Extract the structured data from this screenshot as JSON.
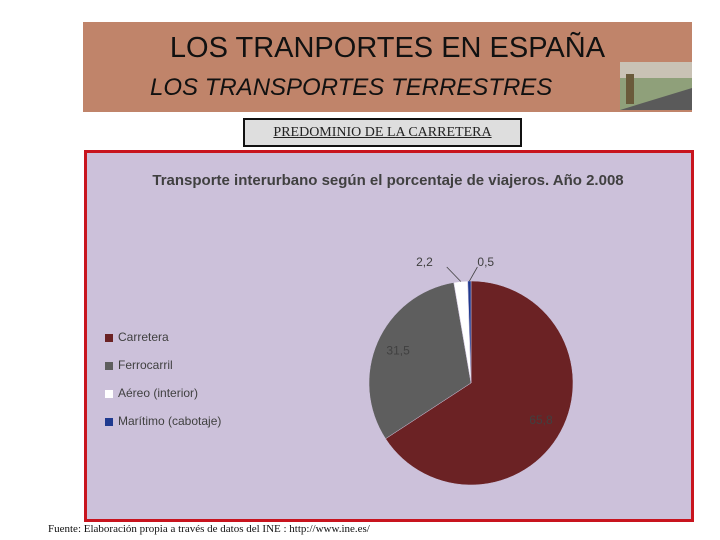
{
  "slide": {
    "title": "LOS TRANPORTES EN ESPAÑA",
    "subtitle": "LOS TRANSPORTES TERRESTRES",
    "banner": "PREDOMINIO DE LA CARRETERA",
    "source": "Fuente: Elaboración propia a través de datos del INE : http://www.ine.es/"
  },
  "chart_data": {
    "type": "pie",
    "title": "Transporte interurbano según el porcentaje de viajeros. Año 2.008",
    "categories": [
      "Carretera",
      "Ferrocarril",
      "Aéreo (interior)",
      "Marítimo (cabotaje)"
    ],
    "values": [
      65.8,
      31.5,
      2.2,
      0.5
    ],
    "value_labels": [
      "65,8",
      "31,5",
      "2,2",
      "0,5"
    ],
    "colors": [
      "#6b2224",
      "#5e5e5e",
      "#ffffff",
      "#1f3a8f"
    ],
    "legend": "left"
  }
}
